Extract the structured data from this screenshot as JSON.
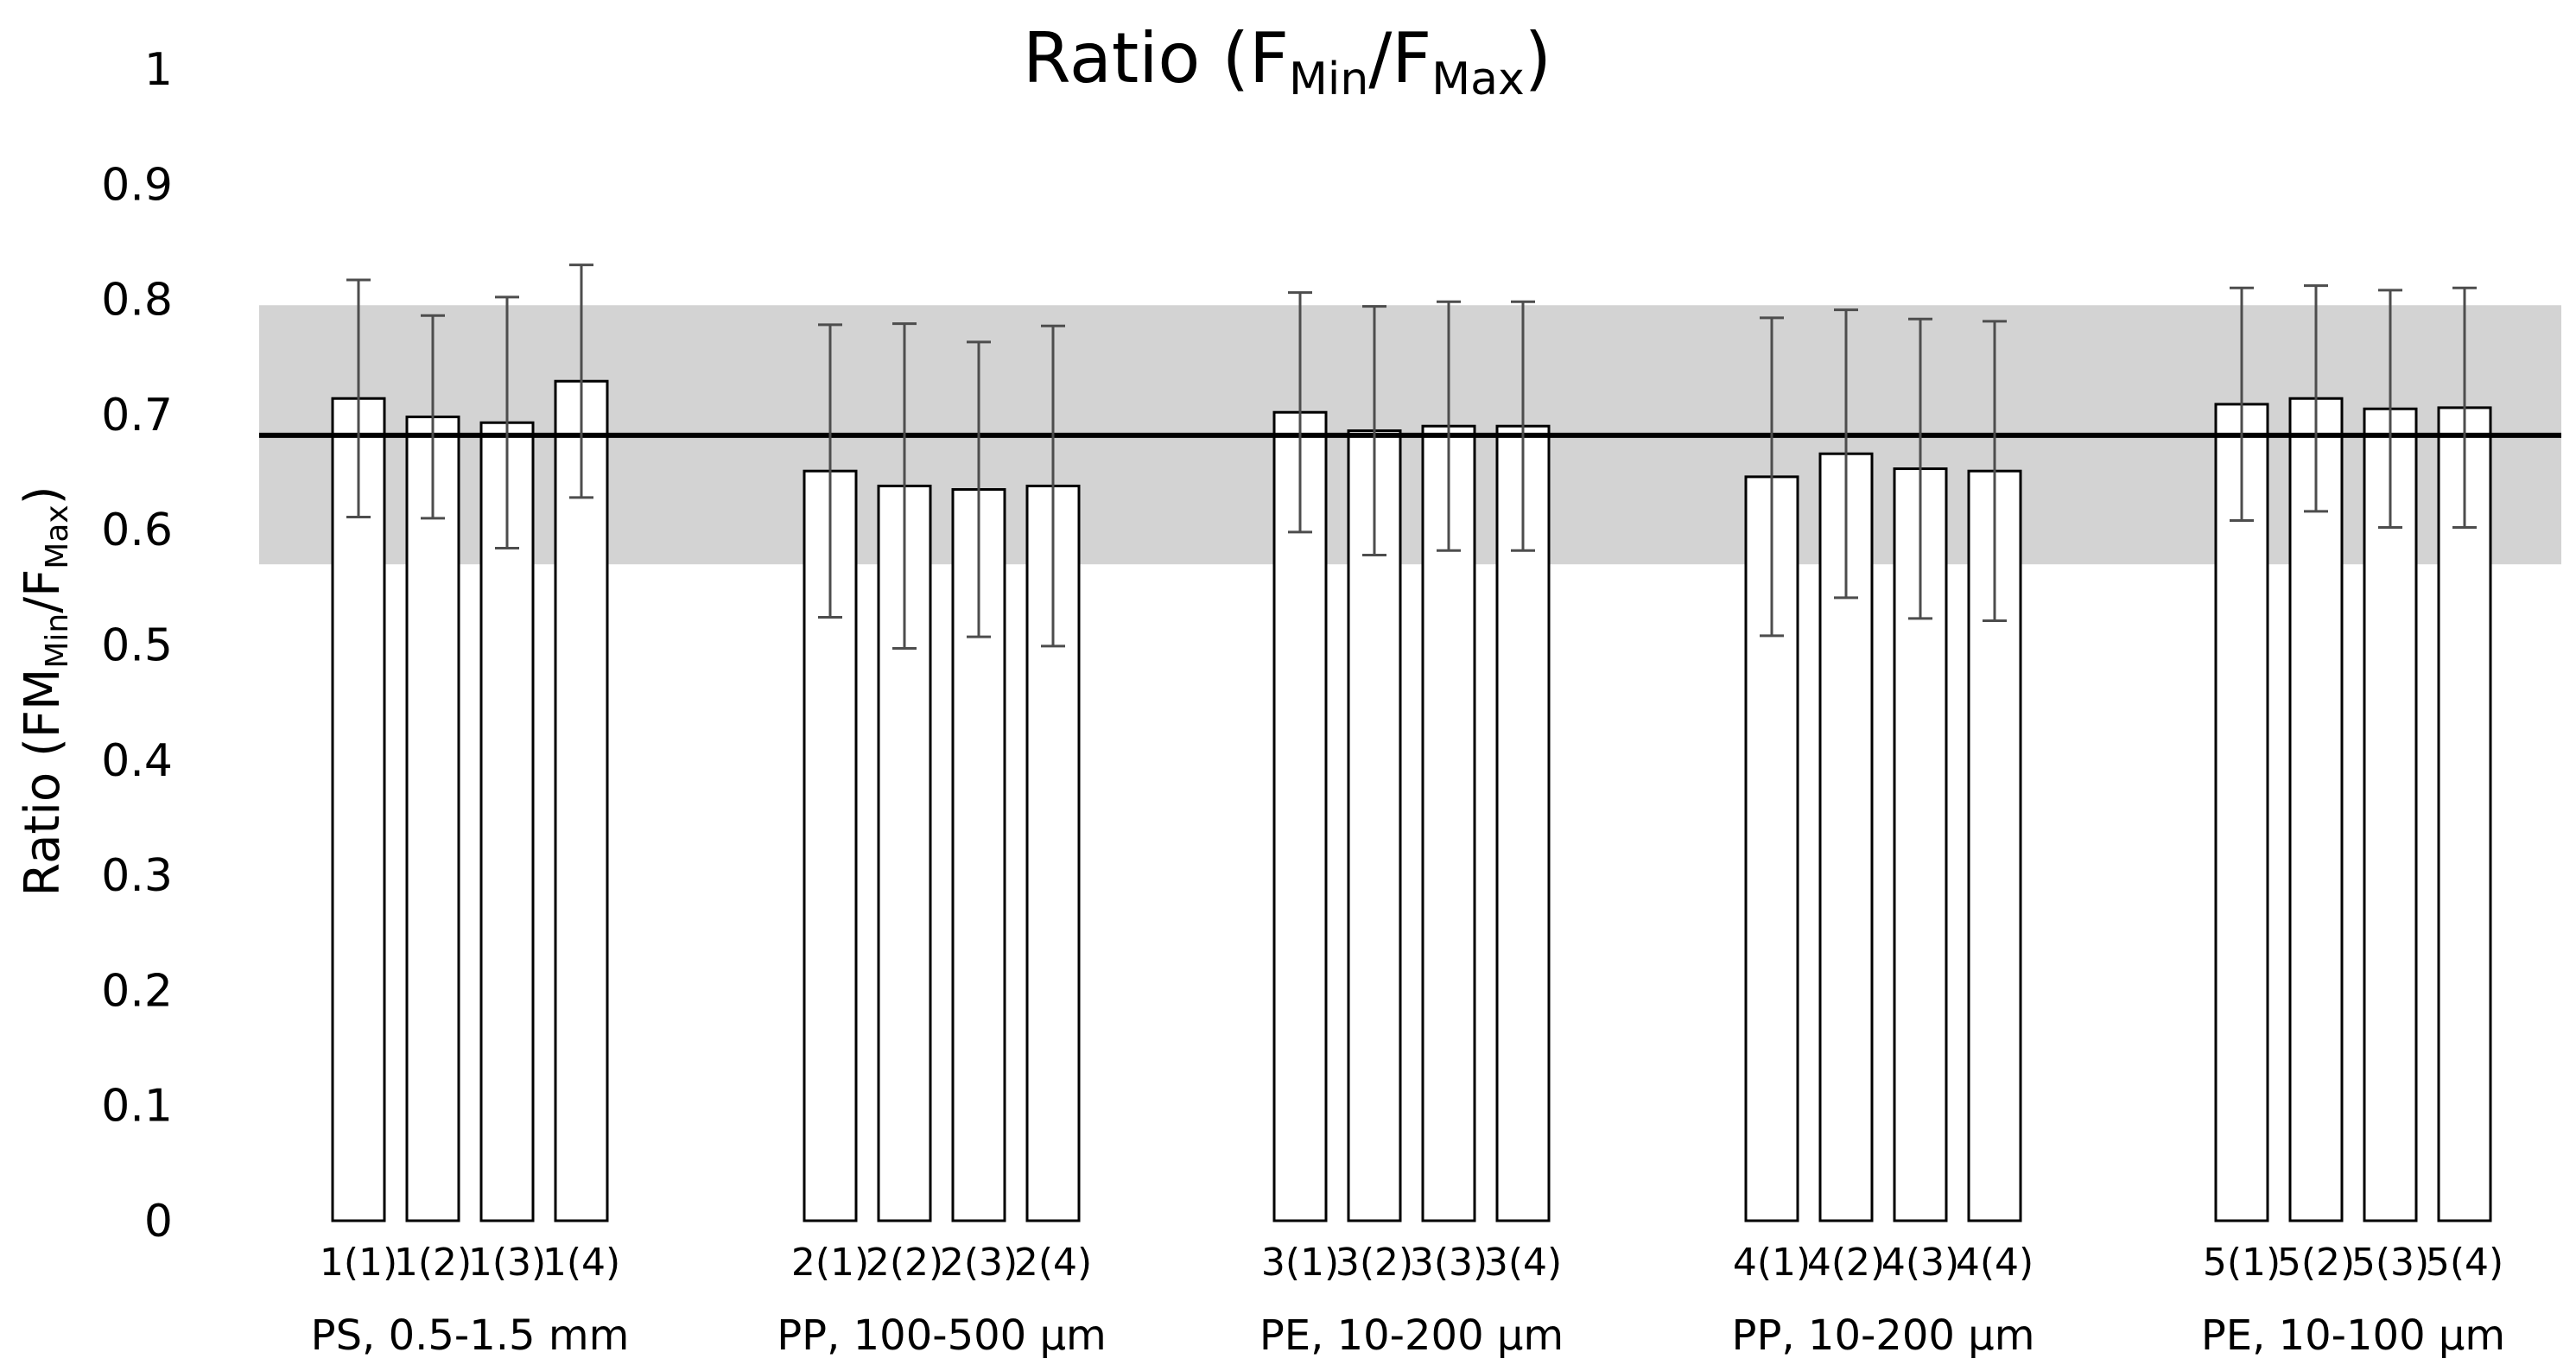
{
  "chart_data": {
    "type": "bar",
    "title": {
      "main": "Ratio (F",
      "sub1": "Min",
      "mid": "/F",
      "sub2": "Max",
      "end": ")"
    },
    "ylabel": {
      "main": "Ratio (FM",
      "sub1": "Min",
      "mid": "/F",
      "sub2": "Max",
      "end": ")"
    },
    "xlabel": "",
    "ylim": [
      0,
      1
    ],
    "yticks": [
      "0",
      "0.1",
      "0.2",
      "0.3",
      "0.4",
      "0.5",
      "0.6",
      "0.7",
      "0.8",
      "0.9",
      "1"
    ],
    "grid": false,
    "legend": "none",
    "reference_line": 0.682,
    "reference_band": [
      0.57,
      0.795
    ],
    "colors": {
      "bar_fill": "#ffffff",
      "bar_edge": "#000000",
      "error_bar": "#4d4d4d",
      "band": "#d3d3d3",
      "reference_line": "#000000"
    },
    "groups": [
      {
        "label": "PS, 0.5-1.5 mm",
        "categories": [
          "1(1)",
          "1(2)",
          "1(3)",
          "1(4)"
        ],
        "values": [
          0.714,
          0.698,
          0.693,
          0.729
        ],
        "errors": [
          0.103,
          0.088,
          0.109,
          0.101
        ]
      },
      {
        "label": "PP, 100-500 µm",
        "categories": [
          "2(1)",
          "2(2)",
          "2(3)",
          "2(4)"
        ],
        "values": [
          0.651,
          0.638,
          0.635,
          0.638
        ],
        "errors": [
          0.127,
          0.141,
          0.128,
          0.139
        ]
      },
      {
        "label": "PE, 10-200 µm",
        "categories": [
          "3(1)",
          "3(2)",
          "3(3)",
          "3(4)"
        ],
        "values": [
          0.702,
          0.686,
          0.69,
          0.69
        ],
        "errors": [
          0.104,
          0.108,
          0.108,
          0.108
        ]
      },
      {
        "label": "PP, 10-200 µm",
        "categories": [
          "4(1)",
          "4(2)",
          "4(3)",
          "4(4)"
        ],
        "values": [
          0.646,
          0.666,
          0.653,
          0.651
        ],
        "errors": [
          0.138,
          0.125,
          0.13,
          0.13
        ]
      },
      {
        "label": "PE, 10-100 µm",
        "categories": [
          "5(1)",
          "5(2)",
          "5(3)",
          "5(4)"
        ],
        "values": [
          0.709,
          0.714,
          0.705,
          0.706
        ],
        "errors": [
          0.101,
          0.098,
          0.103,
          0.104
        ]
      }
    ]
  }
}
